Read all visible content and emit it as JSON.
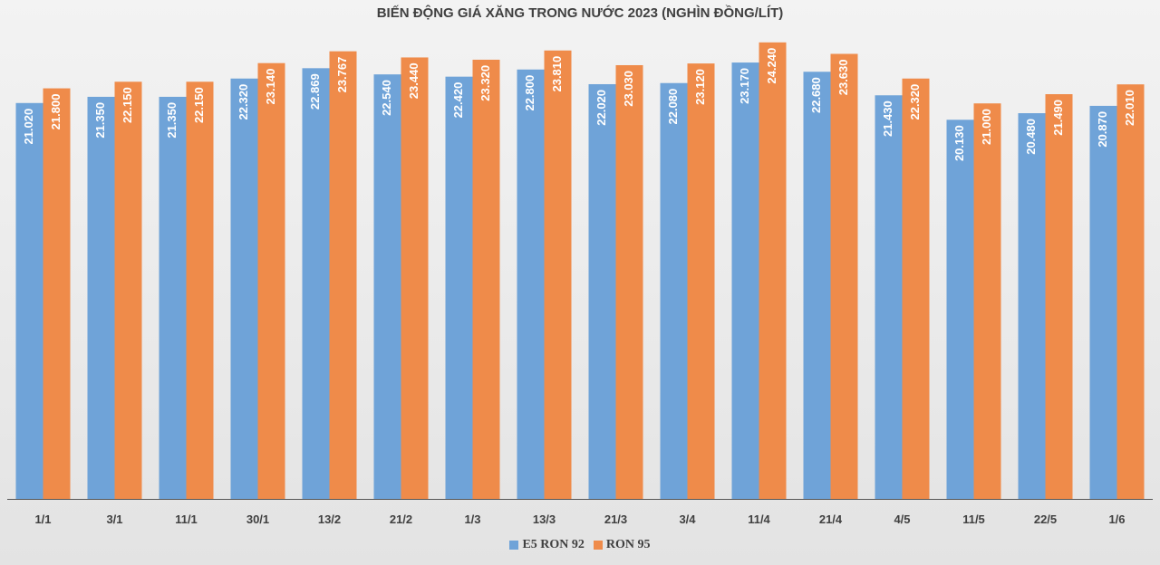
{
  "colors": {
    "e5": "#6fa3d8",
    "ron95": "#ef8b4a",
    "axis": "#555555"
  },
  "chart_data": {
    "type": "bar",
    "title": "BIẾN ĐỘNG GIÁ XĂNG TRONG NƯỚC 2023 (NGHÌN ĐỒNG/LÍT)",
    "xlabel": "",
    "ylabel": "",
    "ylim": [
      0,
      25
    ],
    "grid": false,
    "legend_position": "bottom",
    "categories": [
      "1/1",
      "3/1",
      "11/1",
      "30/1",
      "13/2",
      "21/2",
      "1/3",
      "13/3",
      "21/3",
      "3/4",
      "11/4",
      "21/4",
      "4/5",
      "11/5",
      "22/5",
      "1/6"
    ],
    "series": [
      {
        "name": "E5 RON 92",
        "values": [
          21.02,
          21.35,
          21.35,
          22.32,
          22.869,
          22.54,
          22.42,
          22.8,
          22.02,
          22.08,
          23.17,
          22.68,
          21.43,
          20.13,
          20.48,
          20.87
        ],
        "labels": [
          "21.020",
          "21.350",
          "21.350",
          "22.320",
          "22.869",
          "22.540",
          "22.420",
          "22.800",
          "22.020",
          "22.080",
          "23.170",
          "22.680",
          "21.430",
          "20.130",
          "20.480",
          "20.870"
        ]
      },
      {
        "name": "RON 95",
        "values": [
          21.8,
          22.15,
          22.15,
          23.14,
          23.767,
          23.44,
          23.32,
          23.81,
          23.03,
          23.12,
          24.24,
          23.63,
          22.32,
          21.0,
          21.49,
          22.01
        ],
        "labels": [
          "21.800",
          "22.150",
          "22.150",
          "23.140",
          "23.767",
          "23.440",
          "23.320",
          "23.810",
          "23.030",
          "23.120",
          "24.240",
          "23.630",
          "22.320",
          "21.000",
          "21.490",
          "22.010"
        ]
      }
    ]
  }
}
